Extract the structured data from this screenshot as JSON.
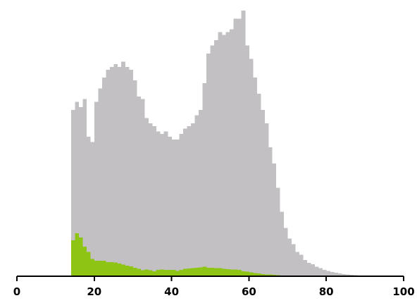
{
  "chart_data": {
    "type": "bar",
    "title": "",
    "xlabel": "",
    "ylabel": "",
    "xlim": [
      0,
      100
    ],
    "xticks": [
      "0",
      "20",
      "40",
      "60",
      "80",
      "100"
    ],
    "grid": false,
    "legend": "none",
    "bin_width": 1,
    "x": [
      14,
      15,
      16,
      17,
      18,
      19,
      20,
      21,
      22,
      23,
      24,
      25,
      26,
      27,
      28,
      29,
      30,
      31,
      32,
      33,
      34,
      35,
      36,
      37,
      38,
      39,
      40,
      41,
      42,
      43,
      44,
      45,
      46,
      47,
      48,
      49,
      50,
      51,
      52,
      53,
      54,
      55,
      56,
      57,
      58,
      59,
      60,
      61,
      62,
      63,
      64,
      65,
      66,
      67,
      68,
      69,
      70,
      71,
      72,
      73,
      74,
      75,
      76,
      77,
      78,
      79,
      80,
      81,
      82,
      83,
      84,
      85,
      86,
      87,
      88,
      89,
      90,
      91,
      92,
      93,
      94,
      95,
      96,
      97,
      98
    ],
    "series": [
      {
        "color": "#c3c0c4",
        "values": [
          62,
          65,
          63,
          66,
          52,
          50,
          65,
          70,
          74,
          77,
          78,
          79,
          78,
          80,
          78,
          77,
          73,
          67,
          66,
          59,
          57,
          56,
          54,
          53,
          54,
          52,
          51,
          51,
          53,
          55,
          56,
          57,
          60,
          62,
          72,
          83,
          86,
          88,
          91,
          90,
          91,
          92,
          96,
          96,
          99,
          86,
          81,
          74,
          68,
          62,
          57,
          48,
          42,
          33,
          24,
          18,
          14,
          12,
          9,
          8,
          6,
          5,
          4.5,
          3.5,
          3,
          2.4,
          2,
          1.6,
          1.3,
          1,
          0.8,
          0.6,
          0.5,
          0.4,
          0.3,
          0.3,
          0.3,
          0.2,
          0.2,
          0.2,
          0.2,
          0.1,
          0.1,
          0.1,
          0.2
        ]
      },
      {
        "color": "#8ec414",
        "values": [
          13.4,
          16,
          14.5,
          11,
          9,
          6.5,
          5.8,
          5.8,
          5.8,
          5.2,
          5.2,
          5.1,
          4.7,
          4.3,
          4.0,
          3.7,
          3.2,
          2.7,
          2.2,
          2.5,
          2.2,
          1.8,
          2.4,
          2.5,
          2.4,
          2.3,
          2.3,
          2.0,
          2.4,
          2.7,
          2.9,
          3.0,
          3.2,
          3.3,
          3.5,
          3.2,
          3.1,
          3.0,
          3.0,
          2.7,
          2.6,
          2.5,
          2.5,
          2.3,
          1.9,
          1.7,
          1.5,
          1.2,
          1.0,
          0.8,
          0.7,
          0.6,
          0.5,
          0.4,
          0.3,
          0.3,
          0.3,
          0.2,
          0.2,
          0.2,
          0.1,
          0.1,
          0.1,
          0.1,
          0.1,
          0.1,
          0.1,
          0.1,
          0.1,
          0.1,
          0.1,
          0.1,
          0.1,
          0.1,
          0.1,
          0.1,
          0.1,
          0.1,
          0.1,
          0.1,
          0.1,
          0.1,
          0.1,
          0.1,
          0.1
        ]
      }
    ],
    "colors": {
      "background": "#ffffff",
      "axis": "#000000",
      "total": "#c3c0c4",
      "subset": "#8ec414"
    }
  }
}
